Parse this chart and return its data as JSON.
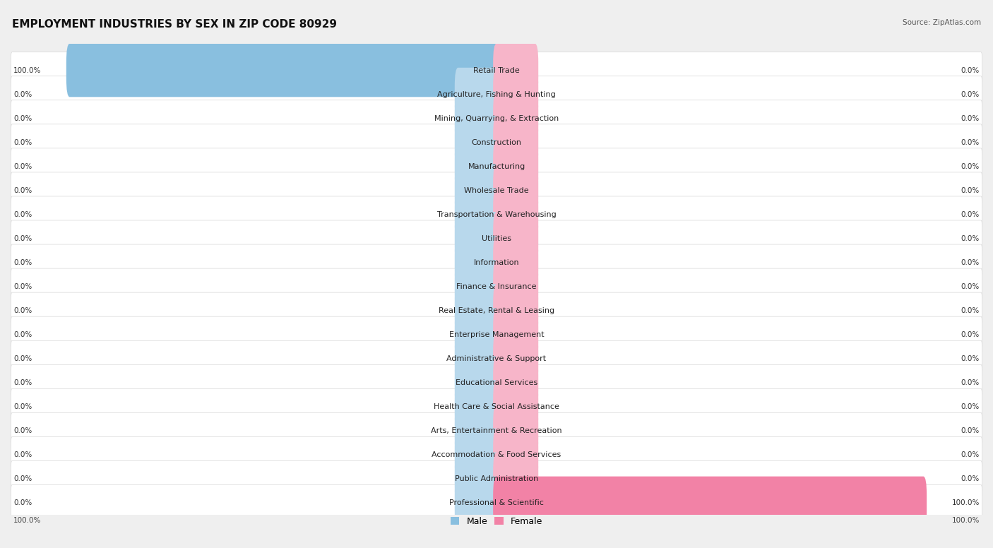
{
  "title": "EMPLOYMENT INDUSTRIES BY SEX IN ZIP CODE 80929",
  "source": "Source: ZipAtlas.com",
  "industries": [
    "Retail Trade",
    "Agriculture, Fishing & Hunting",
    "Mining, Quarrying, & Extraction",
    "Construction",
    "Manufacturing",
    "Wholesale Trade",
    "Transportation & Warehousing",
    "Utilities",
    "Information",
    "Finance & Insurance",
    "Real Estate, Rental & Leasing",
    "Enterprise Management",
    "Administrative & Support",
    "Educational Services",
    "Health Care & Social Assistance",
    "Arts, Entertainment & Recreation",
    "Accommodation & Food Services",
    "Public Administration",
    "Professional & Scientific"
  ],
  "male_pct": [
    100.0,
    0.0,
    0.0,
    0.0,
    0.0,
    0.0,
    0.0,
    0.0,
    0.0,
    0.0,
    0.0,
    0.0,
    0.0,
    0.0,
    0.0,
    0.0,
    0.0,
    0.0,
    0.0
  ],
  "female_pct": [
    0.0,
    0.0,
    0.0,
    0.0,
    0.0,
    0.0,
    0.0,
    0.0,
    0.0,
    0.0,
    0.0,
    0.0,
    0.0,
    0.0,
    0.0,
    0.0,
    0.0,
    0.0,
    100.0
  ],
  "male_color": "#89BFDF",
  "female_color": "#F282A6",
  "male_stub_color": "#B8D8EC",
  "female_stub_color": "#F7B5C9",
  "bg_color": "#EFEFEF",
  "row_bg_color": "#FFFFFF",
  "title_fontsize": 11,
  "category_fontsize": 8,
  "legend_fontsize": 9,
  "value_fontsize": 7.5,
  "source_fontsize": 7.5
}
